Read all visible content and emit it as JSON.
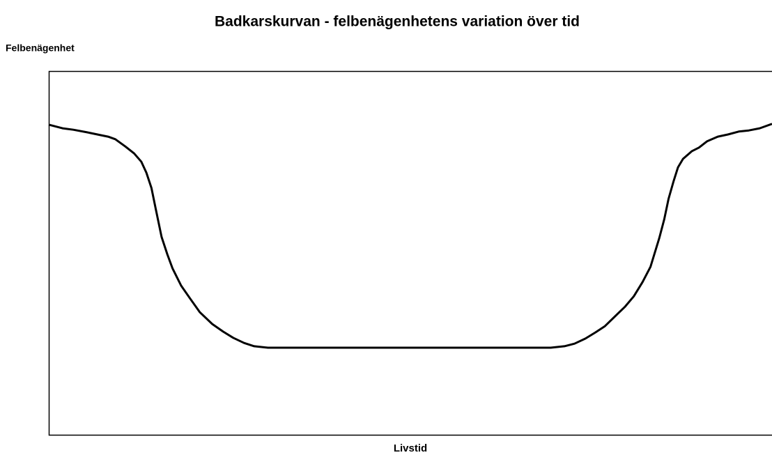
{
  "chart_data": {
    "type": "line",
    "title": "Badkarskurvan - felbenägenhetens variation över tid",
    "y_label": "Felbenägenhet",
    "x_label": "Livstid",
    "xlim": [
      0,
      100
    ],
    "ylim": [
      0,
      100
    ],
    "x": [
      0,
      1.9,
      3.4,
      5.3,
      7.2,
      8.2,
      9.2,
      10.6,
      11.8,
      12.8,
      13.5,
      14.2,
      14.8,
      15.6,
      16.4,
      17.1,
      18.3,
      19.5,
      20.9,
      22.6,
      24.1,
      25.5,
      27.0,
      28.4,
      30.3,
      33.2,
      51.1,
      69.4,
      71.3,
      72.7,
      74.2,
      75.6,
      76.9,
      78.2,
      79.7,
      80.9,
      82.1,
      83.2,
      84.4,
      85.1,
      85.7,
      86.4,
      87.0,
      87.7,
      88.9,
      89.9,
      91.0,
      92.5,
      93.9,
      95.4,
      96.8,
      98.3,
      100
    ],
    "series": [
      {
        "name": "Felbenägenhet",
        "color": "#000000",
        "values": [
          85.3,
          84.3,
          83.9,
          83.2,
          82.4,
          82.0,
          81.3,
          79.3,
          77.4,
          75.1,
          72.1,
          67.9,
          62.1,
          54.5,
          49.7,
          45.9,
          41.1,
          37.7,
          33.8,
          30.6,
          28.5,
          26.8,
          25.4,
          24.5,
          24.1,
          24.1,
          24.1,
          24.1,
          24.5,
          25.2,
          26.6,
          28.3,
          30.0,
          32.5,
          35.4,
          38.2,
          42.1,
          46.3,
          54.1,
          59.3,
          65.0,
          69.8,
          73.6,
          75.9,
          78.0,
          79.0,
          80.7,
          82.0,
          82.6,
          83.4,
          83.7,
          84.3,
          85.5
        ]
      }
    ],
    "grid": false,
    "legend": false
  }
}
